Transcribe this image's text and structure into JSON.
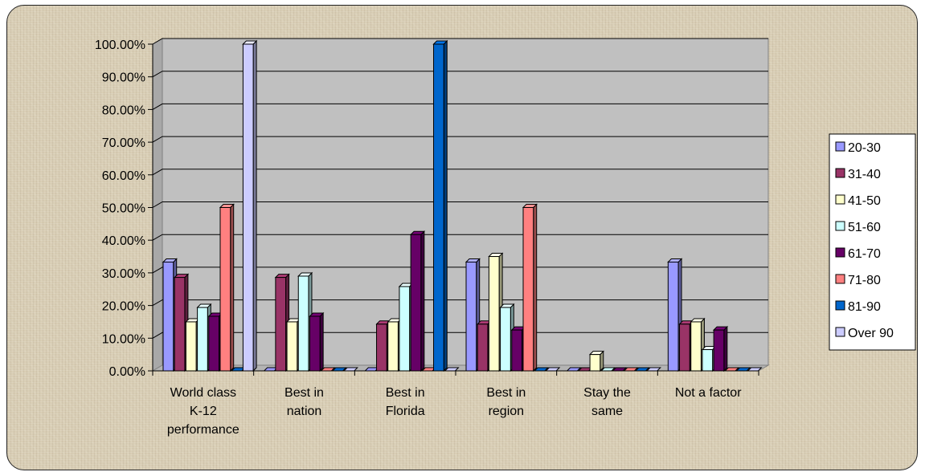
{
  "chart_data": {
    "type": "bar",
    "title": "",
    "xlabel": "",
    "ylabel": "",
    "ylim": [
      0,
      100
    ],
    "yticks": [
      "0.00%",
      "10.00%",
      "20.00%",
      "30.00%",
      "40.00%",
      "50.00%",
      "60.00%",
      "70.00%",
      "80.00%",
      "90.00%",
      "100.00%"
    ],
    "grid": true,
    "legend_position": "right",
    "categories": [
      [
        "World class",
        "K-12",
        "performance"
      ],
      [
        "Best in",
        "nation"
      ],
      [
        "Best in",
        "Florida"
      ],
      [
        "Best in",
        "region"
      ],
      [
        "Stay the",
        "same"
      ],
      [
        "Not a factor"
      ]
    ],
    "series": [
      {
        "name": "20-30",
        "color": "#9999ff",
        "values": [
          33.3,
          0,
          0,
          33.3,
          0,
          33.3
        ]
      },
      {
        "name": "31-40",
        "color": "#993366",
        "values": [
          28.6,
          28.6,
          14.3,
          14.3,
          0,
          14.3
        ]
      },
      {
        "name": "41-50",
        "color": "#ffffcc",
        "values": [
          15.0,
          15.0,
          15.0,
          35.0,
          5.0,
          15.0
        ]
      },
      {
        "name": "51-60",
        "color": "#ccffff",
        "values": [
          19.4,
          29.0,
          25.8,
          19.4,
          0,
          6.5
        ]
      },
      {
        "name": "61-70",
        "color": "#660066",
        "values": [
          16.7,
          16.7,
          41.7,
          12.5,
          0,
          12.5
        ]
      },
      {
        "name": "71-80",
        "color": "#ff8080",
        "values": [
          50.0,
          0,
          0,
          50.0,
          0,
          0
        ]
      },
      {
        "name": "81-90",
        "color": "#0066cc",
        "values": [
          0,
          0,
          100.0,
          0,
          0,
          0
        ]
      },
      {
        "name": "Over 90",
        "color": "#ccccff",
        "values": [
          100.0,
          0,
          0,
          0,
          0,
          0
        ]
      }
    ]
  }
}
